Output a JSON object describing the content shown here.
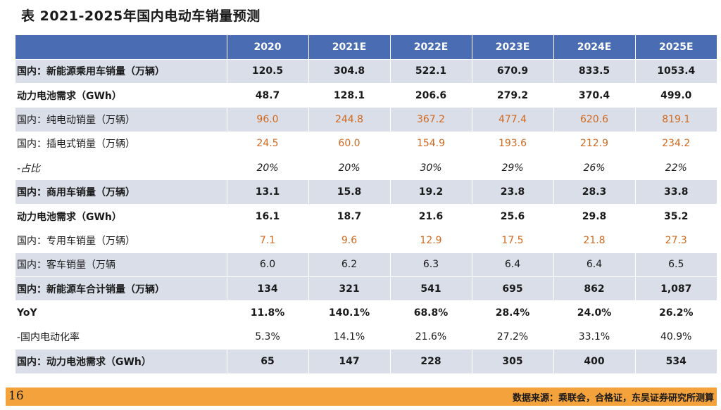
{
  "title": "表  2021-2025年国内电动车销量预测",
  "table": {
    "corner": "",
    "headers": [
      "2020",
      "2021E",
      "2022E",
      "2023E",
      "2024E",
      "2025E"
    ],
    "rows": [
      {
        "label": "国内：新能源乘用车销量（万辆）",
        "values": [
          "120.5",
          "304.8",
          "522.1",
          "670.9",
          "833.5",
          "1053.4"
        ]
      },
      {
        "label": "动力电池需求（GWh）",
        "values": [
          "48.7",
          "128.1",
          "206.6",
          "279.2",
          "370.4",
          "499.0"
        ]
      },
      {
        "label": "国内：纯电动销量（万辆）",
        "values": [
          "96.0",
          "244.8",
          "367.2",
          "477.4",
          "620.6",
          "819.1"
        ]
      },
      {
        "label": "国内：插电式销量（万辆）",
        "values": [
          "24.5",
          "60.0",
          "154.9",
          "193.6",
          "212.9",
          "234.2"
        ]
      },
      {
        "label": "-占比",
        "values": [
          "20%",
          "20%",
          "30%",
          "29%",
          "26%",
          "22%"
        ]
      },
      {
        "label": "国内：商用车销量（万辆）",
        "values": [
          "13.1",
          "15.8",
          "19.2",
          "23.8",
          "28.3",
          "33.8"
        ]
      },
      {
        "label": "动力电池需求（GWh）",
        "values": [
          "16.1",
          "18.7",
          "21.6",
          "25.6",
          "29.8",
          "35.2"
        ]
      },
      {
        "label": "国内：专用车销量（万辆）",
        "values": [
          "7.1",
          "9.6",
          "12.9",
          "17.5",
          "21.8",
          "27.3"
        ]
      },
      {
        "label": "国内：客车销量（万辆",
        "values": [
          "6.0",
          "6.2",
          "6.3",
          "6.4",
          "6.4",
          "6.5"
        ]
      },
      {
        "label": "国内：新能源车合计销量（万辆）",
        "values": [
          "134",
          "321",
          "541",
          "695",
          "862",
          "1,087"
        ]
      },
      {
        "label": "YoY",
        "values": [
          "11.8%",
          "140.1%",
          "68.8%",
          "28.4%",
          "24.0%",
          "26.2%"
        ]
      },
      {
        "label": "-国内电动化率",
        "values": [
          "5.3%",
          "14.1%",
          "21.6%",
          "27.2%",
          "33.1%",
          "40.9%"
        ]
      },
      {
        "label": "国内：动力电池需求（GWh）",
        "values": [
          "65",
          "147",
          "228",
          "305",
          "400",
          "534"
        ]
      }
    ]
  },
  "footer": {
    "page_number": "16",
    "source": "数据来源：乘联会，合格证，东吴证券研究所测算"
  },
  "colors": {
    "header_bg": "#4a6cb3",
    "shade_bg": "#d9dee8",
    "orange_text": "#d2691e",
    "footer_bar": "#f4a23c"
  }
}
